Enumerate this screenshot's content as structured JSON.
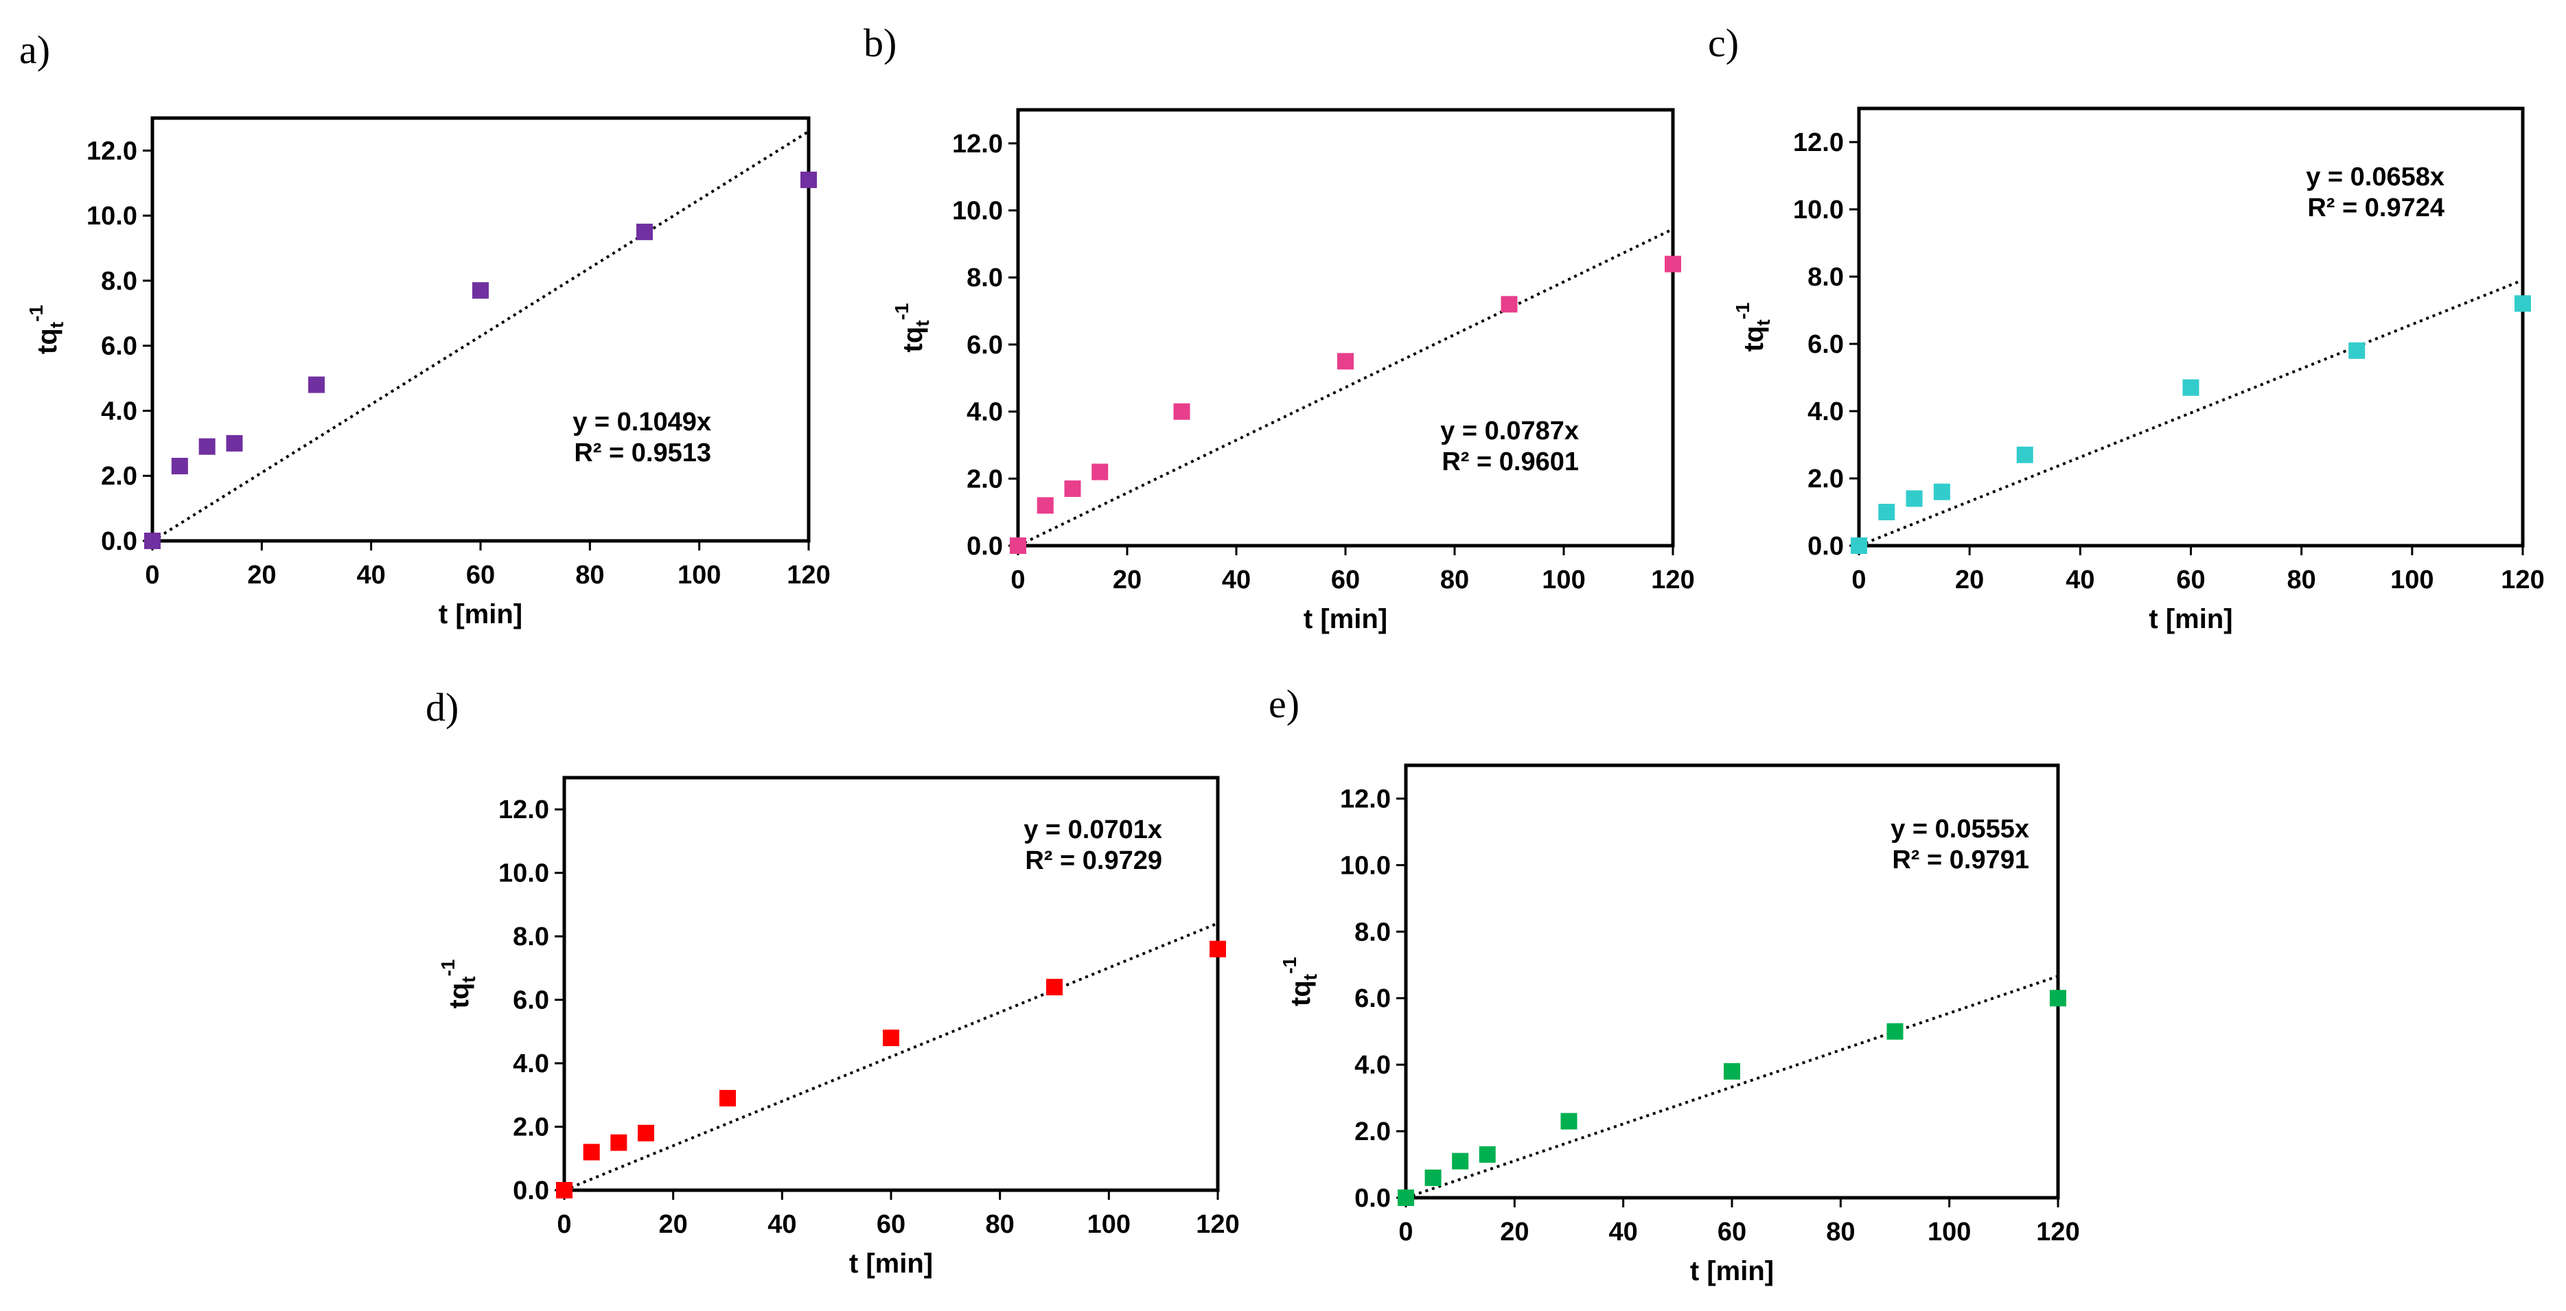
{
  "chart_data": [
    {
      "panel": "a)",
      "type": "scatter",
      "xlabel": "t [min]",
      "ylabel": "tq",
      "ylabel_sub": "t",
      "ylabel_sup": "-1",
      "xlim": [
        0,
        120
      ],
      "ylim": [
        0,
        13
      ],
      "xticks": [
        0,
        20,
        40,
        60,
        80,
        100,
        120
      ],
      "yticks": [
        "0.0",
        "2.0",
        "4.0",
        "6.0",
        "8.0",
        "10.0",
        "12.0"
      ],
      "x": [
        0,
        5,
        10,
        15,
        30,
        60,
        90,
        120
      ],
      "y": [
        0.0,
        2.3,
        2.9,
        3.0,
        4.8,
        7.7,
        9.5,
        11.1
      ],
      "trendline": {
        "type": "linear-through-origin",
        "slope": 0.1049,
        "style": "dotted"
      },
      "equation": "y = 0.1049x",
      "r2": "R² = 0.9513",
      "marker_color": "#7030A0"
    },
    {
      "panel": "b)",
      "type": "scatter",
      "xlabel": "t [min]",
      "ylabel": "tq",
      "ylabel_sub": "t",
      "ylabel_sup": "-1",
      "xlim": [
        0,
        120
      ],
      "ylim": [
        0,
        13
      ],
      "xticks": [
        0,
        20,
        40,
        60,
        80,
        100,
        120
      ],
      "yticks": [
        "0.0",
        "2.0",
        "4.0",
        "6.0",
        "8.0",
        "10.0",
        "12.0"
      ],
      "x": [
        0,
        5,
        10,
        15,
        30,
        60,
        90,
        120
      ],
      "y": [
        0.0,
        1.2,
        1.7,
        2.2,
        4.0,
        5.5,
        7.2,
        8.4
      ],
      "trendline": {
        "type": "linear-through-origin",
        "slope": 0.0787,
        "style": "dotted"
      },
      "equation": "y = 0.0787x",
      "r2": "R² = 0.9601",
      "marker_color": "#E83E8C"
    },
    {
      "panel": "c)",
      "type": "scatter",
      "xlabel": "t [min]",
      "ylabel": "tq",
      "ylabel_sub": "t",
      "ylabel_sup": "-1",
      "xlim": [
        0,
        120
      ],
      "ylim": [
        0,
        13
      ],
      "xticks": [
        0,
        20,
        40,
        60,
        80,
        100,
        120
      ],
      "yticks": [
        "0.0",
        "2.0",
        "4.0",
        "6.0",
        "8.0",
        "10.0",
        "12.0"
      ],
      "x": [
        0,
        5,
        10,
        15,
        30,
        60,
        90,
        120
      ],
      "y": [
        0.0,
        1.0,
        1.4,
        1.6,
        2.7,
        4.7,
        5.8,
        7.2
      ],
      "trendline": {
        "type": "linear-through-origin",
        "slope": 0.0658,
        "style": "dotted"
      },
      "equation": "y = 0.0658x",
      "r2": "R² = 0.9724",
      "marker_color": "#33CCCC"
    },
    {
      "panel": "d)",
      "type": "scatter",
      "xlabel": "t [min]",
      "ylabel": "tq",
      "ylabel_sub": "t",
      "ylabel_sup": "-1",
      "xlim": [
        0,
        120
      ],
      "ylim": [
        0,
        13
      ],
      "xticks": [
        0,
        20,
        40,
        60,
        80,
        100,
        120
      ],
      "yticks": [
        "0.0",
        "2.0",
        "4.0",
        "6.0",
        "8.0",
        "10.0",
        "12.0"
      ],
      "x": [
        0,
        5,
        10,
        15,
        30,
        60,
        90,
        120
      ],
      "y": [
        0.0,
        1.2,
        1.5,
        1.8,
        2.9,
        4.8,
        6.4,
        7.6
      ],
      "trendline": {
        "type": "linear-through-origin",
        "slope": 0.0701,
        "style": "dotted"
      },
      "equation": "y = 0.0701x",
      "r2": "R² = 0.9729",
      "marker_color": "#FF0000"
    },
    {
      "panel": "e)",
      "type": "scatter",
      "xlabel": "t [min]",
      "ylabel": "tq",
      "ylabel_sub": "t",
      "ylabel_sup": "-1",
      "xlim": [
        0,
        120
      ],
      "ylim": [
        0,
        13
      ],
      "xticks": [
        0,
        20,
        40,
        60,
        80,
        100,
        120
      ],
      "yticks": [
        "0.0",
        "2.0",
        "4.0",
        "6.0",
        "8.0",
        "10.0",
        "12.0"
      ],
      "x": [
        0,
        5,
        10,
        15,
        30,
        60,
        90,
        120
      ],
      "y": [
        0.0,
        0.6,
        1.1,
        1.3,
        2.3,
        3.8,
        5.0,
        6.0
      ],
      "trendline": {
        "type": "linear-through-origin",
        "slope": 0.0555,
        "style": "dotted"
      },
      "equation": "y = 0.0555x",
      "r2": "R² = 0.9791",
      "marker_color": "#00B050"
    }
  ]
}
